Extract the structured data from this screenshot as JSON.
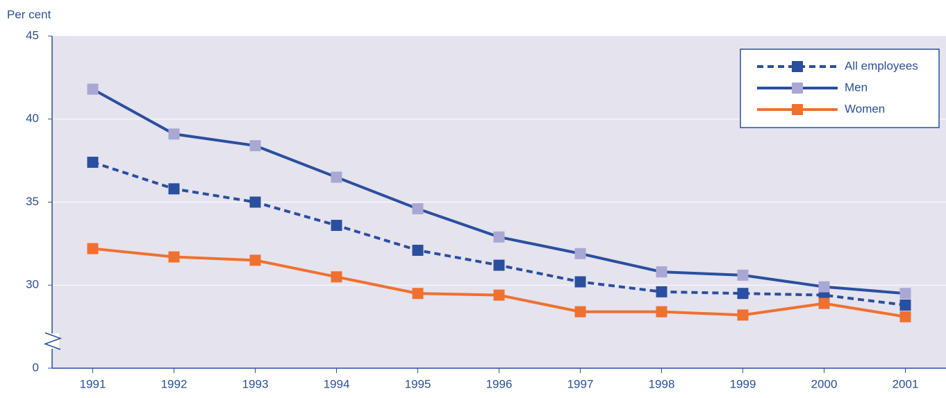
{
  "chart_data": {
    "type": "line",
    "y_label": "Per cent",
    "categories": [
      "1991",
      "1992",
      "1993",
      "1994",
      "1995",
      "1996",
      "1997",
      "1998",
      "1999",
      "2000",
      "2001"
    ],
    "series": [
      {
        "name": "All employees",
        "color": "#2a4f9f",
        "marker_color": "#2a4f9f",
        "dashed": true,
        "values": [
          37.4,
          35.8,
          35.0,
          33.6,
          32.1,
          31.2,
          30.2,
          29.6,
          29.5,
          29.4,
          28.8
        ]
      },
      {
        "name": "Men",
        "color": "#2a4f9f",
        "marker_color": "#a9a8d4",
        "dashed": false,
        "values": [
          41.8,
          39.1,
          38.4,
          36.5,
          34.6,
          32.9,
          31.9,
          30.8,
          30.6,
          29.9,
          29.5
        ]
      },
      {
        "name": "Women",
        "color": "#f07030",
        "marker_color": "#f07030",
        "dashed": false,
        "values": [
          32.2,
          31.7,
          31.5,
          30.5,
          29.5,
          29.4,
          28.4,
          28.4,
          28.2,
          28.9,
          28.1
        ]
      }
    ],
    "ylim": [
      0,
      45
    ],
    "yticks": [
      0,
      30,
      35,
      40,
      45
    ],
    "axis_break": true,
    "grid": true,
    "legend": "top-right",
    "background": "#e5e3ee"
  }
}
